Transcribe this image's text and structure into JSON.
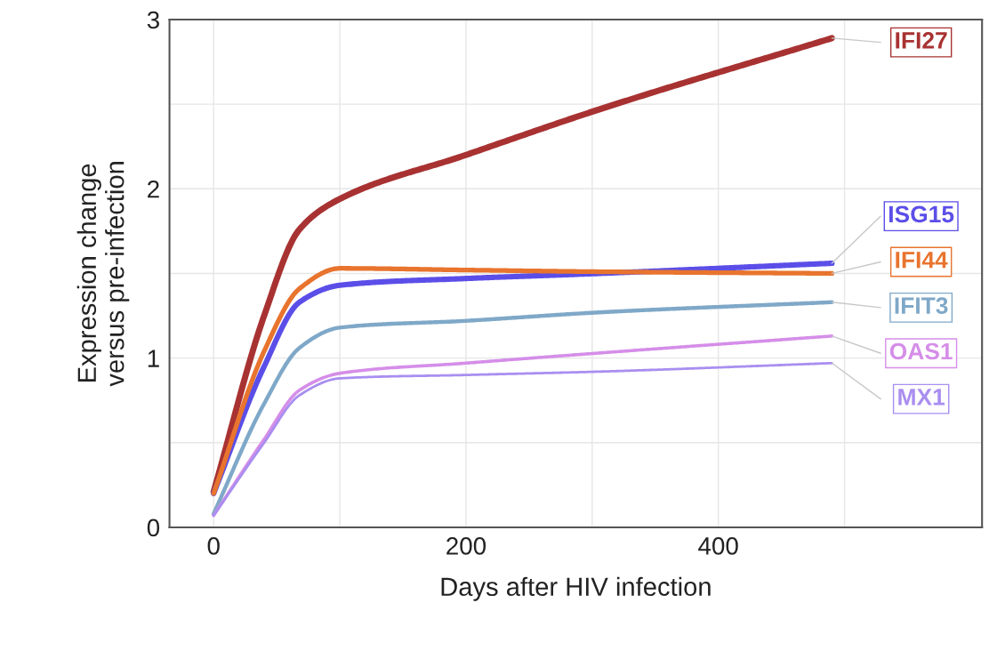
{
  "chart_data": {
    "type": "line",
    "xlabel": "Days after HIV infection",
    "ylabel": "Expression change\nversus pre-infection",
    "xlim": [
      -35,
      609
    ],
    "ylim": [
      0,
      3
    ],
    "xticks": [
      0,
      {
        "value": 100,
        "label": null
      },
      200,
      {
        "value": 300,
        "label": null
      },
      400,
      {
        "value": 500,
        "label": null
      }
    ],
    "yticks": [
      0,
      {
        "value": 0.5,
        "label": null
      },
      1,
      {
        "value": 1.5,
        "label": null
      },
      2,
      {
        "value": 2.5,
        "label": null
      },
      3
    ],
    "grid": true,
    "legend": false,
    "marker": "none",
    "line_style": "solid",
    "x": [
      0,
      40,
      68,
      100,
      200,
      306,
      490
    ],
    "series": [
      {
        "name": "IFI27",
        "color": "#a83232",
        "values": [
          0.21,
          1.25,
          1.76,
          1.94,
          2.2,
          2.47,
          2.89
        ]
      },
      {
        "name": "ISG15",
        "color": "#5b4ee8",
        "values": [
          0.2,
          0.95,
          1.33,
          1.43,
          1.47,
          1.5,
          1.56
        ]
      },
      {
        "name": "IFI44",
        "color": "#e8742e",
        "values": [
          0.2,
          1.04,
          1.41,
          1.53,
          1.52,
          1.51,
          1.5
        ]
      },
      {
        "name": "IFIT3",
        "color": "#7fa8c8",
        "values": [
          0.08,
          0.73,
          1.06,
          1.18,
          1.22,
          1.27,
          1.33
        ]
      },
      {
        "name": "OAS1",
        "color": "#d58ee8",
        "values": [
          0.07,
          0.52,
          0.81,
          0.91,
          0.97,
          1.03,
          1.13
        ]
      },
      {
        "name": "MX1",
        "color": "#a98ef0",
        "values": [
          0.07,
          0.5,
          0.78,
          0.88,
          0.9,
          0.92,
          0.97
        ]
      }
    ]
  }
}
